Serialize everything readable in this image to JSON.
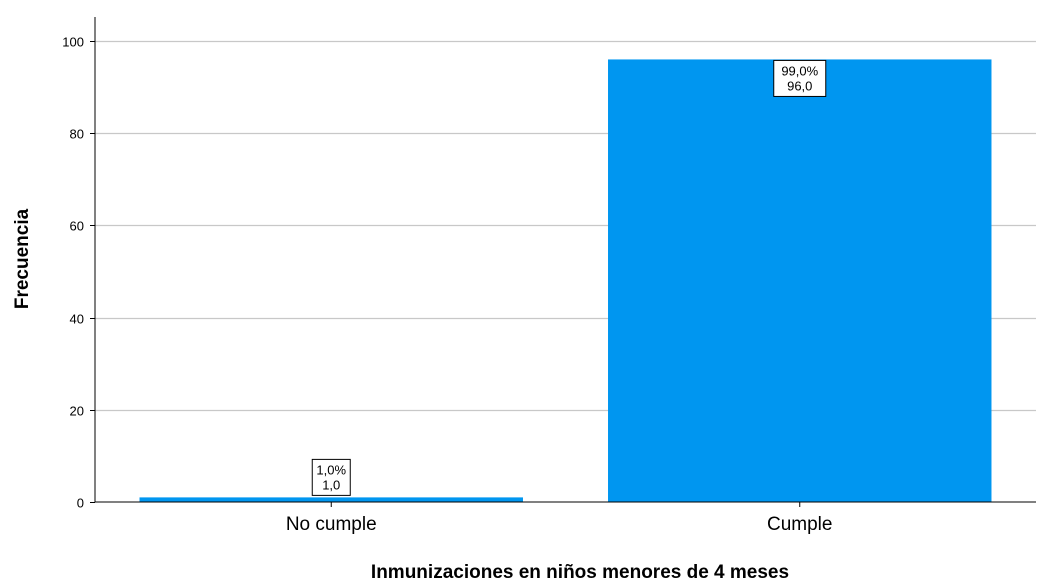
{
  "chart_data": {
    "type": "bar",
    "categories": [
      "No cumple",
      "Cumple"
    ],
    "values": [
      1.0,
      96.0
    ],
    "data_labels": [
      {
        "percent": "1,0%",
        "count": "1,0"
      },
      {
        "percent": "99,0%",
        "count": "96,0"
      }
    ],
    "title": "",
    "xlabel": "Inmunizaciones en niños menores de 4 meses",
    "ylabel": "Frecuencia",
    "ylim": [
      0,
      100
    ],
    "yticks": [
      0,
      20,
      40,
      60,
      80,
      100
    ],
    "grid": true,
    "bar_color": "#0096F0"
  }
}
